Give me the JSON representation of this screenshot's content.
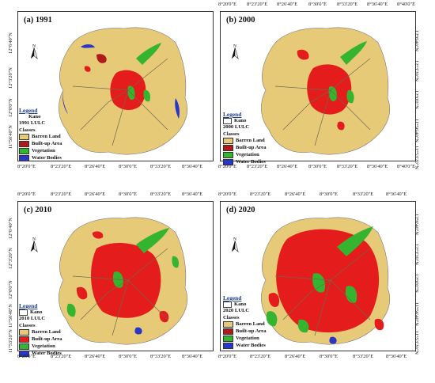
{
  "colors": {
    "barren": "#e7ca78",
    "builtup": "#e51c1c",
    "vegetation": "#35b52f",
    "water": "#2b35c8",
    "road": "#6b6b4a"
  },
  "panels": [
    {
      "label": "(a) 1991",
      "top_ticks": [],
      "bottom_ticks": [
        "8°20'0\"E",
        "8°23'20\"E",
        "8°26'40\"E",
        "8°30'0\"E",
        "8°33'20\"E",
        "8°36'40\"E"
      ],
      "left_ticks": [
        "12°6'40\"N",
        "12°3'20\"N",
        "12°0'0\"N",
        "11°56'40\"N"
      ],
      "right_ticks": [],
      "legend": {
        "title": "Legend",
        "kano": "Kano",
        "subtitle": "1991 LULC",
        "classes_label": "Classes",
        "classes": [
          "Barren Land",
          "Built-up Area",
          "Vegetation",
          "Water Bodies"
        ]
      }
    },
    {
      "label": "(b) 2000",
      "top_ticks": [
        "8°20'0\"E",
        "8°23'20\"E",
        "8°26'40\"E",
        "8°30'0\"E",
        "8°33'20\"E",
        "8°36'40\"E",
        "8°40'0\"E"
      ],
      "bottom_ticks": [
        "8°20'0\"E",
        "8°23'20\"E",
        "8°26'40\"E",
        "8°30'0\"E",
        "8°33'20\"E",
        "8°36'40\"E",
        "8°40'0\"E"
      ],
      "left_ticks": [],
      "right_ticks": [
        "12°6'40\"N",
        "12°3'20\"N",
        "12°0'0\"N",
        "11°56'40\"N",
        "11°53'20\"N"
      ],
      "legend": {
        "title": "Legend",
        "kano": "Kano",
        "subtitle": "2000 LULC",
        "classes_label": "Classes",
        "classes": [
          "Barren Land",
          "Built-up Area",
          "Vegetation",
          "Water Bodies"
        ]
      }
    },
    {
      "label": "(c) 2010",
      "top_ticks": [
        "8°20'0\"E",
        "8°23'20\"E",
        "8°26'40\"E",
        "8°30'0\"E",
        "8°33'20\"E",
        "8°36'40\"E"
      ],
      "bottom_ticks": [
        "8°20'0\"E",
        "8°23'20\"E",
        "8°26'40\"E",
        "8°30'0\"E",
        "8°33'20\"E",
        "8°36'40\"E"
      ],
      "left_ticks": [
        "12°6'40\"N",
        "12°3'20\"N",
        "12°0'0\"N",
        "11°56'40\"N",
        "11°53'20\"N"
      ],
      "right_ticks": [],
      "legend": {
        "title": "Legend",
        "kano": "Kano",
        "subtitle": "2010 LULC",
        "classes_label": "Classes",
        "classes": [
          "Barren Land",
          "Built-up Area",
          "Vegetation",
          "Water Bodies"
        ]
      }
    },
    {
      "label": "(d) 2020",
      "top_ticks": [
        "8°20'0\"E",
        "8°23'20\"E",
        "8°26'40\"E",
        "8°30'0\"E",
        "8°33'20\"E",
        "8°36'40\"E"
      ],
      "bottom_ticks": [
        "8°20'0\"E",
        "8°23'20\"E",
        "8°26'40\"E",
        "8°30'0\"E",
        "8°33'20\"E",
        "8°36'40\"E"
      ],
      "left_ticks": [],
      "right_ticks": [
        "12°6'40\"N",
        "12°3'20\"N",
        "12°0'0\"N",
        "11°56'40\"N",
        "11°53'20\"N"
      ],
      "legend": {
        "title": "Legend",
        "kano": "Kano",
        "subtitle": "2020 LULC",
        "classes_label": "Classes",
        "classes": [
          "Barren Land",
          "Built-up Area",
          "Vegetation",
          "Water Bodies"
        ]
      }
    }
  ]
}
